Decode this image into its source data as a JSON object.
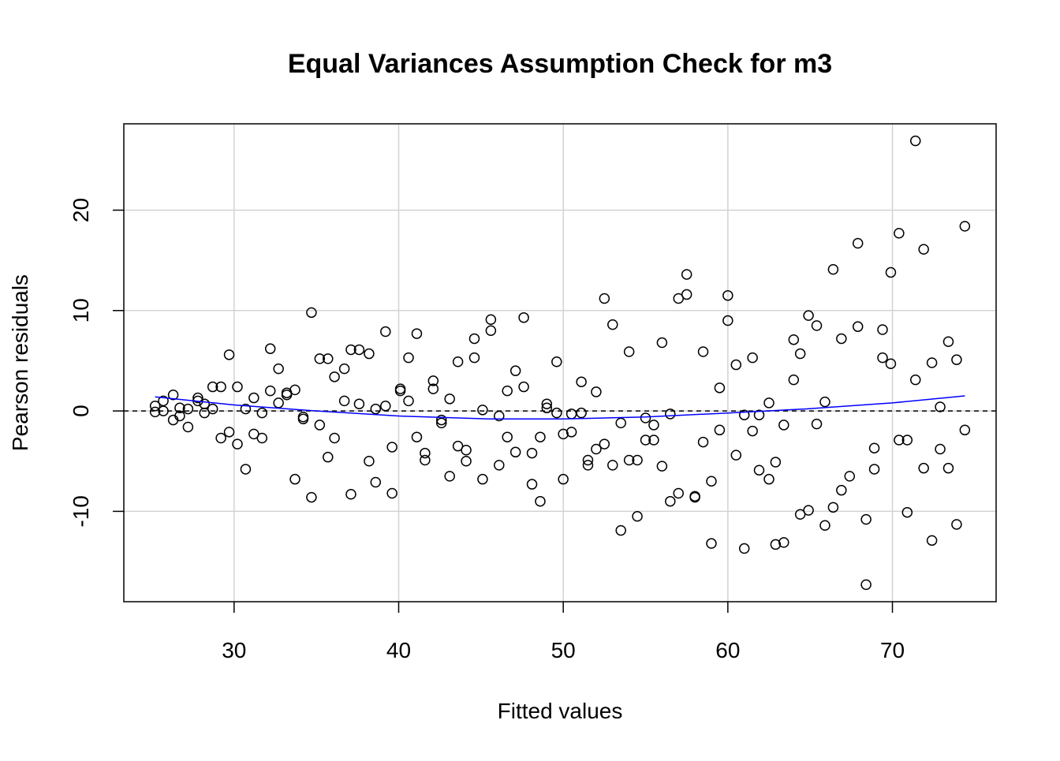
{
  "chart_data": {
    "type": "scatter",
    "title": "Equal Variances Assumption Check for m3",
    "xlabel": "Fitted values",
    "ylabel": "Pearson residuals",
    "xlim": [
      23.3,
      76.3
    ],
    "ylim": [
      -19.0,
      28.6
    ],
    "xticks": [
      30,
      40,
      50,
      60,
      70
    ],
    "yticks": [
      -10,
      0,
      10,
      20
    ],
    "grid": true,
    "reference_line": 0,
    "colors": {
      "points": "#000000",
      "smooth": "#0000ff",
      "grid": "#d3d3d3",
      "reference": "#000000"
    },
    "points": [
      [
        25.2,
        0.5
      ],
      [
        25.2,
        -0.1
      ],
      [
        25.7,
        1.0
      ],
      [
        25.7,
        0.0
      ],
      [
        26.3,
        1.6
      ],
      [
        26.3,
        -0.9
      ],
      [
        26.7,
        0.3
      ],
      [
        26.7,
        -0.5
      ],
      [
        27.2,
        0.2
      ],
      [
        27.2,
        -1.6
      ],
      [
        27.8,
        1.3
      ],
      [
        27.8,
        1.0
      ],
      [
        28.2,
        -0.2
      ],
      [
        28.2,
        0.7
      ],
      [
        28.7,
        2.4
      ],
      [
        28.7,
        0.2
      ],
      [
        29.2,
        2.4
      ],
      [
        29.2,
        -2.7
      ],
      [
        29.7,
        5.6
      ],
      [
        29.7,
        -2.1
      ],
      [
        30.2,
        2.4
      ],
      [
        30.2,
        -3.3
      ],
      [
        30.7,
        0.2
      ],
      [
        30.7,
        -5.8
      ],
      [
        31.2,
        1.3
      ],
      [
        31.2,
        -2.3
      ],
      [
        31.7,
        -0.2
      ],
      [
        31.7,
        -2.7
      ],
      [
        32.2,
        6.2
      ],
      [
        32.2,
        2.0
      ],
      [
        32.7,
        4.2
      ],
      [
        32.7,
        0.8
      ],
      [
        33.2,
        1.8
      ],
      [
        33.2,
        1.6
      ],
      [
        33.7,
        2.1
      ],
      [
        33.7,
        -6.8
      ],
      [
        34.2,
        -0.6
      ],
      [
        34.2,
        -0.8
      ],
      [
        34.7,
        9.8
      ],
      [
        34.7,
        -8.6
      ],
      [
        35.2,
        5.2
      ],
      [
        35.2,
        -1.4
      ],
      [
        35.7,
        5.2
      ],
      [
        35.7,
        -4.6
      ],
      [
        36.1,
        3.4
      ],
      [
        36.1,
        -2.7
      ],
      [
        36.7,
        4.2
      ],
      [
        36.7,
        1.0
      ],
      [
        37.1,
        6.1
      ],
      [
        37.1,
        -8.3
      ],
      [
        37.6,
        6.1
      ],
      [
        37.6,
        0.7
      ],
      [
        38.2,
        5.7
      ],
      [
        38.2,
        -5.0
      ],
      [
        38.6,
        0.2
      ],
      [
        38.6,
        -7.1
      ],
      [
        39.2,
        7.9
      ],
      [
        39.2,
        0.5
      ],
      [
        39.6,
        -3.6
      ],
      [
        39.6,
        -8.2
      ],
      [
        40.1,
        2.2
      ],
      [
        40.1,
        2.0
      ],
      [
        40.6,
        5.3
      ],
      [
        40.6,
        1.0
      ],
      [
        41.1,
        7.7
      ],
      [
        41.1,
        -2.6
      ],
      [
        41.6,
        -4.2
      ],
      [
        41.6,
        -4.9
      ],
      [
        42.1,
        3.0
      ],
      [
        42.1,
        2.2
      ],
      [
        42.6,
        -0.9
      ],
      [
        42.6,
        -1.2
      ],
      [
        43.1,
        1.2
      ],
      [
        43.1,
        -6.5
      ],
      [
        43.6,
        4.9
      ],
      [
        43.6,
        -3.5
      ],
      [
        44.1,
        -3.9
      ],
      [
        44.1,
        -5.0
      ],
      [
        44.6,
        7.2
      ],
      [
        44.6,
        5.3
      ],
      [
        45.1,
        0.1
      ],
      [
        45.1,
        -6.8
      ],
      [
        45.6,
        9.1
      ],
      [
        45.6,
        8.0
      ],
      [
        46.1,
        -0.5
      ],
      [
        46.1,
        -5.4
      ],
      [
        46.6,
        2.0
      ],
      [
        46.6,
        -2.6
      ],
      [
        47.1,
        4.0
      ],
      [
        47.1,
        -4.1
      ],
      [
        47.6,
        2.4
      ],
      [
        47.6,
        9.3
      ],
      [
        48.1,
        -4.2
      ],
      [
        48.1,
        -7.3
      ],
      [
        48.6,
        -2.6
      ],
      [
        48.6,
        -9.0
      ],
      [
        49.0,
        0.7
      ],
      [
        49.0,
        0.3
      ],
      [
        49.6,
        4.9
      ],
      [
        49.6,
        -0.2
      ],
      [
        50.0,
        -2.3
      ],
      [
        50.0,
        -6.8
      ],
      [
        50.5,
        -0.3
      ],
      [
        50.5,
        -2.1
      ],
      [
        51.1,
        2.9
      ],
      [
        51.1,
        -0.2
      ],
      [
        51.5,
        -4.9
      ],
      [
        51.5,
        -5.4
      ],
      [
        52.0,
        1.9
      ],
      [
        52.0,
        -3.8
      ],
      [
        52.5,
        11.2
      ],
      [
        52.5,
        -3.3
      ],
      [
        53.0,
        8.6
      ],
      [
        53.0,
        -5.4
      ],
      [
        53.5,
        -1.2
      ],
      [
        53.5,
        -11.9
      ],
      [
        54.0,
        5.9
      ],
      [
        54.0,
        -4.9
      ],
      [
        54.5,
        -4.9
      ],
      [
        54.5,
        -10.5
      ],
      [
        55.0,
        -0.7
      ],
      [
        55.0,
        -2.9
      ],
      [
        55.5,
        -1.4
      ],
      [
        55.5,
        -2.9
      ],
      [
        56.0,
        6.8
      ],
      [
        56.0,
        -5.5
      ],
      [
        56.5,
        -0.3
      ],
      [
        56.5,
        -9.0
      ],
      [
        57.0,
        11.2
      ],
      [
        57.0,
        -8.2
      ],
      [
        57.5,
        13.6
      ],
      [
        57.5,
        11.6
      ],
      [
        58.0,
        -8.5
      ],
      [
        58.0,
        -8.6
      ],
      [
        58.5,
        5.9
      ],
      [
        58.5,
        -3.1
      ],
      [
        59.0,
        -13.2
      ],
      [
        59.0,
        -7.0
      ],
      [
        59.5,
        2.3
      ],
      [
        59.5,
        -1.9
      ],
      [
        60.0,
        11.5
      ],
      [
        60.0,
        9.0
      ],
      [
        60.5,
        4.6
      ],
      [
        60.5,
        -4.4
      ],
      [
        61.0,
        -0.4
      ],
      [
        61.0,
        -13.7
      ],
      [
        61.5,
        5.3
      ],
      [
        61.5,
        -2.0
      ],
      [
        61.9,
        -0.4
      ],
      [
        61.9,
        -5.9
      ],
      [
        62.5,
        0.8
      ],
      [
        62.5,
        -6.8
      ],
      [
        62.9,
        -5.1
      ],
      [
        62.9,
        -13.3
      ],
      [
        63.4,
        -1.4
      ],
      [
        63.4,
        -13.1
      ],
      [
        64.0,
        7.1
      ],
      [
        64.0,
        3.1
      ],
      [
        64.4,
        5.7
      ],
      [
        64.4,
        -10.3
      ],
      [
        64.9,
        9.5
      ],
      [
        64.9,
        -9.9
      ],
      [
        65.4,
        8.5
      ],
      [
        65.4,
        -1.3
      ],
      [
        65.9,
        0.9
      ],
      [
        65.9,
        -11.4
      ],
      [
        66.4,
        14.1
      ],
      [
        66.4,
        -9.6
      ],
      [
        66.9,
        7.2
      ],
      [
        66.9,
        -7.9
      ],
      [
        67.4,
        -6.5
      ],
      [
        67.9,
        16.7
      ],
      [
        67.9,
        8.4
      ],
      [
        68.4,
        -17.3
      ],
      [
        68.4,
        -10.8
      ],
      [
        68.9,
        -3.7
      ],
      [
        68.9,
        -5.8
      ],
      [
        69.4,
        8.1
      ],
      [
        69.4,
        5.3
      ],
      [
        69.9,
        13.8
      ],
      [
        69.9,
        4.7
      ],
      [
        70.4,
        17.7
      ],
      [
        70.4,
        -2.9
      ],
      [
        70.9,
        -10.1
      ],
      [
        70.9,
        -2.9
      ],
      [
        71.4,
        26.9
      ],
      [
        71.4,
        3.1
      ],
      [
        71.9,
        16.1
      ],
      [
        71.9,
        -5.7
      ],
      [
        72.4,
        4.8
      ],
      [
        72.4,
        -12.9
      ],
      [
        72.9,
        0.4
      ],
      [
        72.9,
        -3.8
      ],
      [
        73.4,
        6.9
      ],
      [
        73.4,
        -5.7
      ],
      [
        73.9,
        5.1
      ],
      [
        73.9,
        -11.3
      ],
      [
        74.4,
        18.4
      ],
      [
        74.4,
        -1.9
      ]
    ],
    "smooth": [
      [
        25.2,
        1.4
      ],
      [
        30.0,
        0.6
      ],
      [
        35.0,
        0.0
      ],
      [
        40.0,
        -0.5
      ],
      [
        45.5,
        -0.8
      ],
      [
        50.0,
        -0.8
      ],
      [
        55.0,
        -0.6
      ],
      [
        60.0,
        -0.2
      ],
      [
        64.7,
        0.2
      ],
      [
        70.0,
        0.8
      ],
      [
        74.4,
        1.5
      ]
    ]
  }
}
